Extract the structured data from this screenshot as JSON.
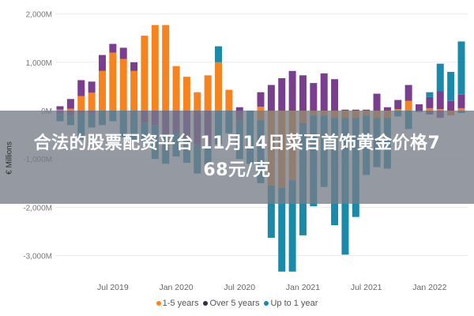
{
  "banner": {
    "line1": "合法的股票配资平台 11月14日菜百首饰黄金价格7",
    "line2": "68元/克"
  },
  "chart_data": {
    "type": "bar",
    "stacked": true,
    "ylabel": "€ Millions",
    "ylim": [
      -3400,
      2100
    ],
    "yticks": [
      2000,
      1000,
      0,
      -1000,
      -2000,
      -3000
    ],
    "ytick_labels": [
      "2,000M",
      "1,000M",
      "0M",
      "-1,000M",
      "-2,000M",
      "-3,000M"
    ],
    "xtick_labels": [
      "Jul 2019",
      "Jan 2020",
      "Jul 2020",
      "Jan 2021",
      "Jul 2021",
      "Jan 2022"
    ],
    "xtick_index": [
      5,
      11,
      17,
      23,
      29,
      35
    ],
    "grid": true,
    "legend_position": "bottom",
    "categories": [
      "Feb 2019",
      "Mar 2019",
      "Apr 2019",
      "May 2019",
      "Jun 2019",
      "Jul 2019",
      "Aug 2019",
      "Sep 2019",
      "Oct 2019",
      "Nov 2019",
      "Dec 2019",
      "Jan 2020",
      "Feb 2020",
      "Mar 2020",
      "Apr 2020",
      "May 2020",
      "Jun 2020",
      "Jul 2020",
      "Aug 2020",
      "Sep 2020",
      "Oct 2020",
      "Nov 2020",
      "Dec 2020",
      "Jan 2021",
      "Feb 2021",
      "Mar 2021",
      "Apr 2021",
      "May 2021",
      "Jun 2021",
      "Jul 2021",
      "Aug 2021",
      "Sep 2021",
      "Oct 2021",
      "Nov 2021",
      "Dec 2021",
      "Jan 2022",
      "Feb 2022",
      "Mar 2022",
      "Apr 2022"
    ],
    "series": [
      {
        "name": "1-5 years",
        "color": "#F7831E",
        "pos": [
          20,
          40,
          300,
          370,
          820,
          1200,
          1070,
          820,
          1550,
          1770,
          1770,
          920,
          700,
          380,
          730,
          1000,
          430,
          0,
          0,
          80,
          0,
          0,
          0,
          0,
          0,
          0,
          0,
          0,
          0,
          0,
          0,
          0,
          30,
          200,
          0,
          50,
          30,
          0,
          50
        ],
        "neg": [
          0,
          0,
          0,
          0,
          0,
          0,
          0,
          0,
          0,
          0,
          0,
          0,
          0,
          0,
          0,
          0,
          0,
          0,
          0,
          -200,
          -1550,
          -1600,
          -1440,
          -250,
          -100,
          -100,
          -150,
          -150,
          -150,
          -100,
          -150,
          -150,
          0,
          0,
          0,
          0,
          0,
          -100,
          0
        ]
      },
      {
        "name": "Over 5 years",
        "color": "#7A3E8E",
        "pos": [
          70,
          200,
          330,
          230,
          330,
          180,
          230,
          180,
          0,
          0,
          0,
          0,
          0,
          0,
          0,
          0,
          0,
          70,
          0,
          300,
          530,
          670,
          820,
          730,
          570,
          770,
          650,
          20,
          20,
          20,
          350,
          70,
          190,
          330,
          130,
          230,
          370,
          200,
          280
        ],
        "neg": [
          -70,
          -100,
          -50,
          -50,
          0,
          0,
          0,
          0,
          -250,
          -300,
          -500,
          -450,
          -600,
          -700,
          -700,
          0,
          0,
          -200,
          0,
          0,
          0,
          0,
          0,
          0,
          0,
          0,
          0,
          0,
          0,
          0,
          0,
          0,
          0,
          0,
          0,
          -80,
          -150,
          0,
          0
        ]
      },
      {
        "name": "Up to 1 year",
        "color": "#1A8AAA",
        "pos": [
          0,
          0,
          0,
          0,
          0,
          0,
          0,
          0,
          0,
          0,
          0,
          0,
          0,
          0,
          0,
          330,
          0,
          0,
          0,
          0,
          0,
          0,
          0,
          0,
          0,
          0,
          0,
          0,
          0,
          0,
          0,
          0,
          0,
          0,
          0,
          100,
          570,
          600,
          1100
        ],
        "neg": [
          -150,
          -200,
          -550,
          -300,
          -300,
          -220,
          -550,
          -600,
          -400,
          -700,
          -600,
          -500,
          -480,
          -600,
          -420,
          -700,
          -470,
          -800,
          -1100,
          -1300,
          -1080,
          -1730,
          -1890,
          -2330,
          -1880,
          -1480,
          -2220,
          -2830,
          -2050,
          -1230,
          -1020,
          -1050,
          -120,
          -380,
          -30,
          0,
          0,
          0,
          -50
        ]
      }
    ]
  }
}
